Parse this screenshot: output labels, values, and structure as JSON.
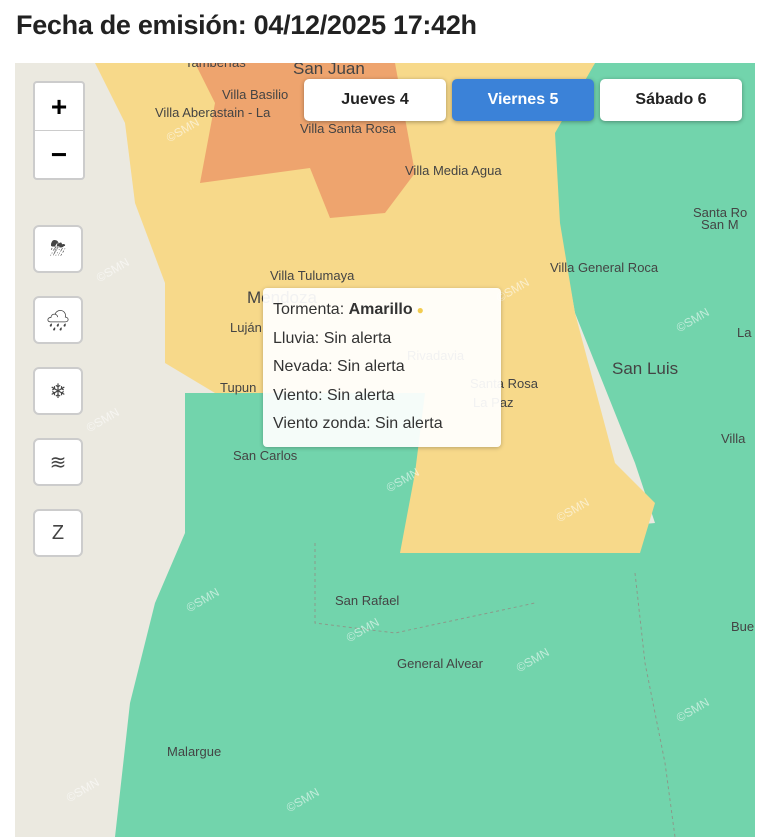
{
  "header": {
    "title": "Fecha de emisión: 04/12/2025 17:42h"
  },
  "colors": {
    "amarillo": "#f7d98a",
    "naranja": "#eea46e",
    "sin_alerta": "#72d4ac",
    "fondo": "#ebe9e0",
    "activo": "#3b82d8"
  },
  "zoom": {
    "in": "+",
    "out": "−"
  },
  "tools": [
    {
      "icon": "storm-icon",
      "glyph": "⛈"
    },
    {
      "icon": "rain-icon",
      "glyph": "🌧"
    },
    {
      "icon": "snow-icon",
      "glyph": "❄"
    },
    {
      "icon": "wind-icon",
      "glyph": "≋"
    },
    {
      "icon": "zonda-wind-icon",
      "glyph": "Z"
    }
  ],
  "days": [
    {
      "label": "Jueves 4",
      "active": false
    },
    {
      "label": "Viernes 5",
      "active": true
    },
    {
      "label": "Sábado 6",
      "active": false
    }
  ],
  "tooltip": {
    "rows": [
      {
        "k": "Tormenta: ",
        "v": "Amarillo"
      },
      {
        "k": "Lluvia: ",
        "v": "Sin alerta"
      },
      {
        "k": "Nevada: ",
        "v": "Sin alerta"
      },
      {
        "k": "Viento: ",
        "v": "Sin alerta"
      },
      {
        "k": "Viento zonda: ",
        "v": "Sin alerta"
      }
    ]
  },
  "places": [
    "Tamberías",
    "San Juan",
    "Villa Basilio",
    "Villa Aberastain - La",
    "Villa Santa Rosa",
    "Villa Media Agua",
    "Santa Ro",
    "San M",
    "Villa Tulumaya",
    "Mendoza",
    "Luján",
    "Villa General Roca",
    "San Luis",
    "La",
    "Rivadavia",
    "Santa Rosa",
    "La Paz",
    "Tupun",
    "Villa",
    "San Carlos",
    "San Rafael",
    "Bue",
    "General Alvear",
    "Malargue"
  ],
  "watermark": "©SMN"
}
